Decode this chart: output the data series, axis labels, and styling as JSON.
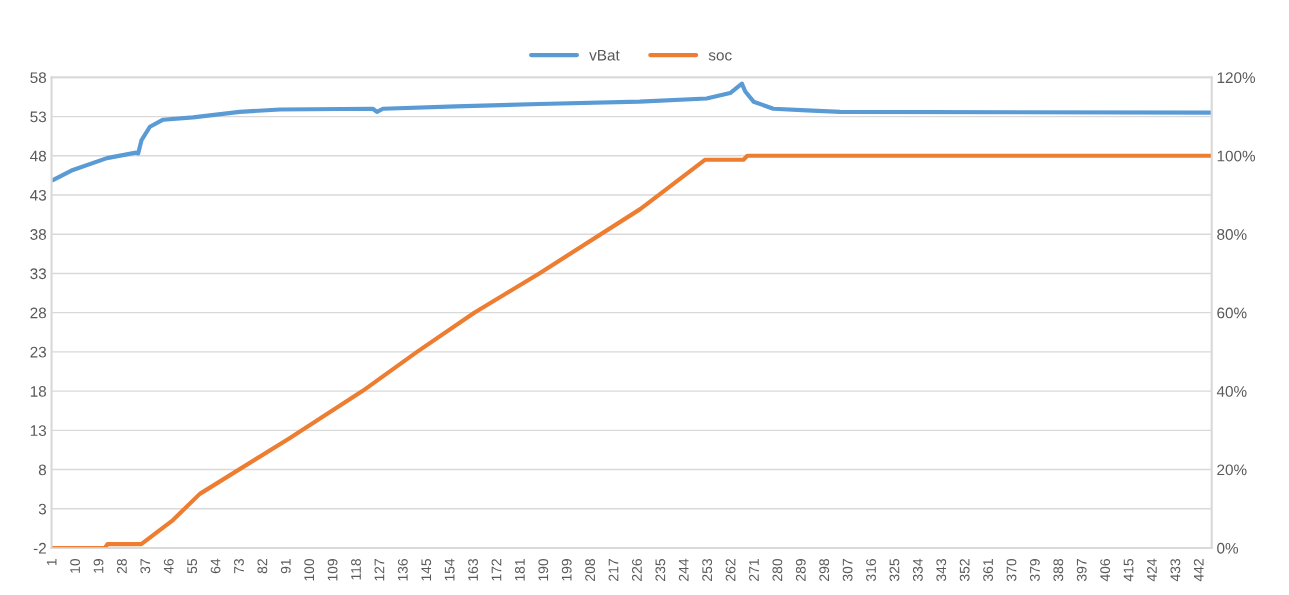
{
  "chart_data": {
    "type": "line",
    "xlim": [
      0.5,
      446.5
    ],
    "xticks": [
      1,
      10,
      19,
      28,
      37,
      46,
      55,
      64,
      73,
      82,
      91,
      100,
      109,
      118,
      127,
      136,
      145,
      154,
      163,
      172,
      181,
      190,
      199,
      208,
      217,
      226,
      235,
      244,
      253,
      262,
      271,
      280,
      289,
      298,
      307,
      316,
      325,
      334,
      343,
      352,
      361,
      370,
      379,
      388,
      397,
      406,
      415,
      424,
      433,
      442
    ],
    "ylim": [
      -2,
      58
    ],
    "yticks": [
      -2,
      3,
      8,
      13,
      18,
      23,
      28,
      33,
      38,
      43,
      48,
      53,
      58
    ],
    "y2lim": [
      0,
      120
    ],
    "y2ticks": [
      {
        "value": 0,
        "label": "0%"
      },
      {
        "value": 20,
        "label": "20%"
      },
      {
        "value": 40,
        "label": "40%"
      },
      {
        "value": 60,
        "label": "60%"
      },
      {
        "value": 80,
        "label": "80%"
      },
      {
        "value": 100,
        "label": "100%"
      },
      {
        "value": 120,
        "label": "120%"
      }
    ],
    "grid": "y",
    "legend": "top",
    "series": [
      {
        "name": "vBat",
        "color": "#5b9bd5",
        "x": [
          1,
          8.7,
          21.8,
          33,
          33.8,
          35.1,
          38.3,
          43.4,
          54.9,
          72.8,
          88.3,
          124,
          125.6,
          127.9,
          156,
          188,
          226.6,
          252.3,
          261.4,
          265.9,
          267.2,
          270.4,
          278,
          290.9,
          303.7,
          446
        ],
        "values": [
          44.9,
          46.2,
          47.7,
          48.4,
          48.3,
          50.0,
          51.7,
          52.6,
          52.9,
          53.6,
          53.9,
          54.0,
          53.6,
          54.0,
          54.3,
          54.6,
          54.9,
          55.3,
          56.0,
          57.2,
          56.2,
          54.9,
          54.0,
          53.8,
          53.6,
          53.5
        ]
      },
      {
        "name": "soc",
        "color": "#ed7d31",
        "axis": "y2",
        "x": [
          1,
          21,
          22,
          35,
          46.8,
          57.5,
          92,
          120,
          141,
          163,
          188,
          226.8,
          251.8,
          266.5,
          268,
          446
        ],
        "values": [
          0,
          0,
          1,
          1,
          6.9,
          13.8,
          28,
          40,
          50,
          60,
          70,
          86.4,
          99,
          99,
          100,
          100
        ]
      }
    ]
  }
}
